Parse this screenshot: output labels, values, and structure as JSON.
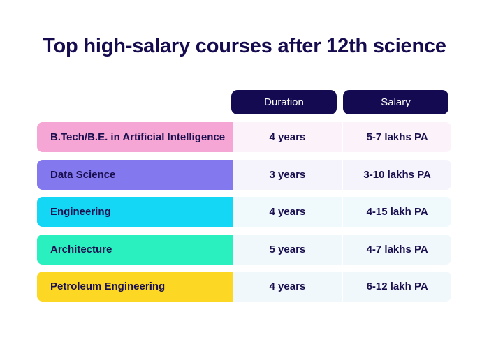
{
  "title": "Top high-salary courses after 12th science",
  "headers": {
    "duration": "Duration",
    "salary": "Salary"
  },
  "rows": [
    {
      "course": "B.Tech/B.E. in Artificial Intelligence",
      "duration": "4 years",
      "salary": "5-7 lakhs PA",
      "color": "#f5a6d4",
      "tint": "#fbf3f9"
    },
    {
      "course": "Data Science",
      "duration": "3 years",
      "salary": "3-10 lakhs PA",
      "color": "#8478ef",
      "tint": "#f5f3fb"
    },
    {
      "course": "Engineering",
      "duration": "4 years",
      "salary": "4-15 lakh PA",
      "color": "#14d6f5",
      "tint": "#f0f9fc"
    },
    {
      "course": "Architecture",
      "duration": "5 years",
      "salary": "4-7 lakhs PA",
      "color": "#2af0c0",
      "tint": "#f0f8fb"
    },
    {
      "course": "Petroleum Engineering",
      "duration": "4 years",
      "salary": "6-12 lakh PA",
      "color": "#fcd824",
      "tint": "#f0f8fb"
    }
  ]
}
